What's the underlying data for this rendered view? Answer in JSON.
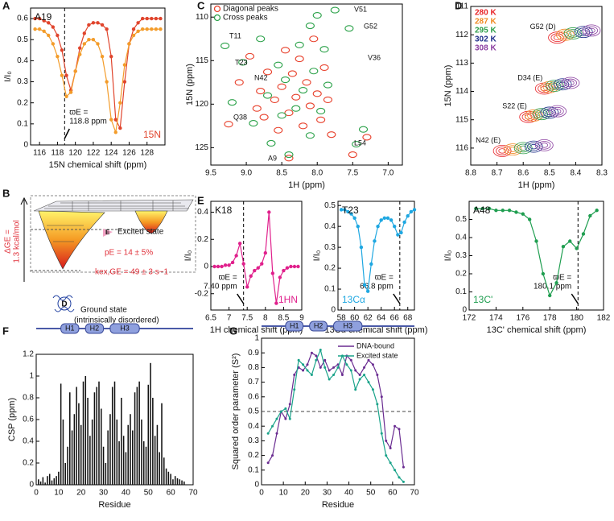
{
  "chart_data": [
    {
      "type": "line",
      "panel": "A",
      "label": "A19",
      "nucleus": "15N",
      "xlabel": "15N chemical shift (ppm)",
      "ylabel": "I/I₀",
      "xlim": [
        115,
        130
      ],
      "xticks": [
        116,
        118,
        120,
        122,
        124,
        126,
        128
      ],
      "ylim": [
        0,
        0.65
      ],
      "yticks": [
        0,
        0.1,
        0.2,
        0.3,
        0.4,
        0.5,
        0.6
      ],
      "marker_x": 118.8,
      "marker_label": "ϖE =",
      "marker_value_label": "118.8 ppm",
      "x": [
        115.5,
        116,
        116.5,
        117,
        117.5,
        118,
        118.5,
        119,
        119.5,
        120,
        120.5,
        121,
        121.5,
        122,
        122.5,
        123,
        123.5,
        124,
        124.5,
        125,
        125.5,
        126,
        126.5,
        127,
        127.5,
        128,
        128.5,
        129,
        129.5
      ],
      "series": [
        {
          "color": "#e0442c",
          "values": [
            0.6,
            0.6,
            0.59,
            0.58,
            0.56,
            0.52,
            0.45,
            0.33,
            0.26,
            0.35,
            0.46,
            0.53,
            0.57,
            0.58,
            0.58,
            0.57,
            0.55,
            0.42,
            0.12,
            0.08,
            0.3,
            0.48,
            0.55,
            0.58,
            0.6,
            0.6,
            0.6,
            0.6,
            0.6
          ]
        },
        {
          "color": "#f39c2a",
          "values": [
            0.55,
            0.55,
            0.54,
            0.52,
            0.48,
            0.42,
            0.33,
            0.23,
            0.25,
            0.35,
            0.43,
            0.48,
            0.5,
            0.5,
            0.48,
            0.42,
            0.3,
            0.12,
            0.06,
            0.2,
            0.38,
            0.48,
            0.52,
            0.54,
            0.55,
            0.55,
            0.55,
            0.55,
            0.55
          ]
        }
      ]
    },
    {
      "type": "scatter",
      "panel": "C",
      "xlabel": "1H (ppm)",
      "ylabel": "15N (ppm)",
      "xlim": [
        9.5,
        6.8
      ],
      "xticks": [
        9.5,
        {
          "value": 9,
          "label": "9.0"
        },
        8.5,
        {
          "value": 8,
          "label": "8.0"
        },
        7.5,
        {
          "value": 7,
          "label": "7.0"
        }
      ],
      "ylim": [
        127,
        108.5
      ],
      "yticks": [
        110,
        115,
        120,
        125
      ],
      "peak_labels": [
        "V51",
        "G52",
        "T11",
        "V36",
        "T23",
        "N42",
        "Q38",
        "L54",
        "A9"
      ],
      "series": [
        {
          "name": "Diagonal peaks",
          "color": "#e8412c",
          "x": [
            9.25,
            9.1,
            8.95,
            8.85,
            8.8,
            8.75,
            8.7,
            8.6,
            8.55,
            8.5,
            8.45,
            8.4,
            8.35,
            8.3,
            8.25,
            8.2,
            8.15,
            8.1,
            8.05,
            8.0,
            7.95,
            7.9,
            7.85,
            7.8,
            8.4,
            7.3,
            7.5
          ],
          "values": [
            122.3,
            117.5,
            114.5,
            120.5,
            118.5,
            121.5,
            116.3,
            119.5,
            123,
            118,
            113.8,
            121,
            116.5,
            119.2,
            114.8,
            122.5,
            117.5,
            120.2,
            112.5,
            118.8,
            121.8,
            115.8,
            119.5,
            123.5,
            126.2,
            123.8,
            125.8
          ]
        },
        {
          "name": "Cross peaks",
          "color": "#2ca24a",
          "x": [
            9.3,
            9.2,
            9.05,
            8.9,
            8.8,
            8.7,
            8.65,
            8.55,
            8.5,
            8.45,
            8.4,
            8.3,
            8.25,
            8.2,
            8.1,
            8.1,
            8.05,
            8.0,
            7.95,
            7.9,
            7.85,
            7.55,
            7.75,
            7.35,
            7.45
          ],
          "values": [
            113.3,
            119.8,
            115.2,
            122.2,
            112.5,
            119,
            124.5,
            115.5,
            121.3,
            117.2,
            125.8,
            120.5,
            113.2,
            118.4,
            111,
            123.6,
            116.2,
            109.8,
            120.8,
            113.7,
            117.8,
            111.3,
            109.2,
            122.9,
            124.6
          ]
        }
      ]
    },
    {
      "type": "contour",
      "panel": "D",
      "xlabel": "1H (ppm)",
      "ylabel": "15N (ppm)",
      "xlim": [
        8.8,
        8.3
      ],
      "xticks": [
        8.8,
        8.7,
        8.6,
        8.5,
        8.4,
        8.3
      ],
      "ylim": [
        116.6,
        111
      ],
      "yticks": [
        111,
        112,
        113,
        114,
        115,
        116
      ],
      "peaks": [
        "G52 (D)",
        "D34 (E)",
        "S22 (E)",
        "N42 (E)"
      ],
      "series": [
        {
          "name": "280 K",
          "color": "#e8252a",
          "x": [
            8.47,
            8.52,
            8.58,
            8.68
          ],
          "values": [
            112.1,
            113.9,
            114.9,
            116.1
          ]
        },
        {
          "name": "287 K",
          "color": "#f08a24",
          "x": [
            8.44,
            8.5,
            8.56,
            8.64
          ],
          "values": [
            112.0,
            113.85,
            114.85,
            116.05
          ]
        },
        {
          "name": "295 K",
          "color": "#2e9e4a",
          "x": [
            8.41,
            8.48,
            8.53,
            8.6
          ],
          "values": [
            111.95,
            113.8,
            114.8,
            116.0
          ]
        },
        {
          "name": "302 K",
          "color": "#1f2f8a",
          "x": [
            8.37,
            8.45,
            8.5,
            8.56
          ],
          "values": [
            111.9,
            113.75,
            114.75,
            115.95
          ]
        },
        {
          "name": "308 K",
          "color": "#8b3fa0",
          "x": [
            8.34,
            8.42,
            8.47,
            8.52
          ],
          "values": [
            111.85,
            113.7,
            114.7,
            115.9
          ]
        }
      ]
    },
    {
      "type": "line",
      "panel": "E",
      "label": "K18",
      "nucleus": "1HN",
      "xlabel": "1H chemical shift (ppm)",
      "ylabel": "I/I₀",
      "xlim": [
        6.5,
        9
      ],
      "xticks": [
        6.5,
        7,
        7.5,
        8,
        8.5,
        9
      ],
      "ylim": [
        -0.32,
        0.48
      ],
      "yticks": [
        -0.2,
        0,
        0.2,
        0.4
      ],
      "marker_x": 7.4,
      "marker_label": "ϖE =",
      "marker_value_label": "7.40 ppm",
      "x": [
        6.6,
        6.7,
        6.8,
        6.9,
        7.0,
        7.1,
        7.2,
        7.3,
        7.4,
        7.5,
        7.6,
        7.7,
        7.8,
        7.9,
        8.0,
        8.1,
        8.2,
        8.3,
        8.4,
        8.5,
        8.6,
        8.7,
        8.8,
        8.9
      ],
      "series": [
        {
          "color": "#e0208c",
          "values": [
            0,
            0,
            0,
            0.01,
            0.01,
            0.03,
            0.08,
            0.17,
            0.02,
            -0.15,
            -0.07,
            -0.03,
            -0.01,
            0.02,
            0.1,
            0.4,
            -0.05,
            -0.27,
            -0.08,
            -0.03,
            -0.01,
            0,
            0,
            0
          ]
        }
      ]
    },
    {
      "type": "line",
      "label": "T23",
      "nucleus": "13Cα",
      "xlabel": "13Cα chemical shift (ppm)",
      "ylabel": "I/I₀",
      "xlim": [
        57.5,
        69
      ],
      "xticks": [
        58,
        60,
        62,
        64,
        66,
        68
      ],
      "ylim": [
        0,
        0.52
      ],
      "yticks": [
        0,
        0.1,
        0.2,
        0.3,
        0.4,
        0.5
      ],
      "marker_x": 66.8,
      "marker_label": "ϖE =",
      "marker_value_label": "66.8 ppm",
      "x": [
        58,
        58.5,
        59,
        59.5,
        60,
        60.5,
        61,
        61.5,
        62,
        62.5,
        63,
        63.5,
        64,
        64.5,
        65,
        65.5,
        66,
        66.5,
        67,
        67.5,
        68,
        68.5,
        69
      ],
      "series": [
        {
          "color": "#1ea7e1",
          "values": [
            0.48,
            0.48,
            0.47,
            0.46,
            0.44,
            0.4,
            0.3,
            0.12,
            0.09,
            0.22,
            0.33,
            0.4,
            0.43,
            0.44,
            0.44,
            0.43,
            0.4,
            0.36,
            0.37,
            0.42,
            0.45,
            0.47,
            0.48
          ]
        }
      ]
    },
    {
      "type": "line",
      "label": "A48",
      "nucleus": "13C'",
      "xlabel": "13C' chemical shift (ppm)",
      "ylabel": "I/I₀",
      "xlim": [
        172,
        182
      ],
      "xticks": [
        172,
        174,
        176,
        178,
        180,
        182
      ],
      "ylim": [
        0,
        0.6
      ],
      "yticks": [
        0,
        0.1,
        0.2,
        0.3,
        0.4,
        0.5
      ],
      "marker_x": 180.1,
      "marker_label": "ϖE =",
      "marker_value_label": "180.1 ppm",
      "x": [
        172.5,
        173,
        173.5,
        174,
        174.5,
        175,
        175.5,
        176,
        176.5,
        177,
        177.5,
        178,
        178.5,
        179,
        179.5,
        180,
        180.5,
        181,
        181.5
      ],
      "series": [
        {
          "color": "#1f9e50",
          "values": [
            0.56,
            0.56,
            0.56,
            0.55,
            0.55,
            0.55,
            0.54,
            0.53,
            0.5,
            0.38,
            0.2,
            0.08,
            0.15,
            0.35,
            0.38,
            0.34,
            0.42,
            0.52,
            0.55
          ]
        }
      ]
    },
    {
      "type": "bar",
      "panel": "F",
      "xlabel": "Residue",
      "ylabel": "CSP (ppm)",
      "color": "#111111",
      "helices": [
        "H1",
        "H2",
        "H3"
      ],
      "xlim": [
        0,
        70
      ],
      "xticks": [
        0,
        10,
        20,
        30,
        40,
        50,
        60,
        70
      ],
      "ylim": [
        0,
        1.2
      ],
      "yticks": [
        0,
        0.2,
        0.4,
        0.6,
        0.8,
        1,
        1.2
      ],
      "x": [
        1,
        2,
        3,
        4,
        5,
        6,
        7,
        8,
        9,
        10,
        11,
        12,
        13,
        14,
        15,
        16,
        17,
        18,
        19,
        20,
        21,
        22,
        23,
        24,
        25,
        26,
        27,
        28,
        29,
        30,
        31,
        32,
        33,
        34,
        35,
        36,
        37,
        38,
        39,
        40,
        41,
        42,
        43,
        44,
        45,
        46,
        47,
        48,
        49,
        50,
        51,
        52,
        53,
        54,
        55,
        56,
        57,
        58,
        59,
        60,
        61,
        62,
        63,
        64,
        65,
        66
      ],
      "values": [
        0.05,
        0.03,
        0.07,
        0.02,
        0.08,
        0.1,
        0.04,
        0.06,
        0.08,
        0.12,
        0.93,
        0.6,
        0.2,
        0.35,
        0.85,
        0.5,
        0.65,
        0.9,
        0.75,
        0.55,
        0.95,
        1.0,
        0.8,
        0.45,
        0.6,
        0.85,
        0.9,
        0.95,
        0.7,
        0.35,
        0.2,
        0.5,
        0.65,
        0.9,
        0.95,
        0.6,
        0.4,
        0.8,
        0.45,
        0.3,
        0.55,
        0.65,
        0.5,
        0.85,
        0.9,
        0.95,
        0.6,
        0.4,
        0.35,
        0.92,
        1.12,
        0.8,
        0.45,
        0.55,
        0.3,
        0.75,
        0.25,
        0.15,
        0.12,
        0.1,
        0.05,
        0.08,
        0.06,
        0.05,
        0.04,
        0.03
      ]
    },
    {
      "type": "line",
      "panel": "G",
      "xlabel": "Residue",
      "ylabel": "Squared order parameter (S²)",
      "helices": [
        "H1",
        "H2",
        "H3"
      ],
      "reference_line": 0.5,
      "xlim": [
        0,
        70
      ],
      "xticks": [
        0,
        10,
        20,
        30,
        40,
        50,
        60,
        70
      ],
      "ylim": [
        0,
        1
      ],
      "yticks": [
        0,
        0.1,
        0.2,
        0.3,
        0.4,
        0.5,
        0.6,
        0.7,
        0.8,
        0.9,
        1
      ],
      "x": [
        3,
        5,
        7,
        9,
        11,
        13,
        15,
        17,
        19,
        21,
        23,
        25,
        27,
        29,
        31,
        33,
        35,
        37,
        39,
        41,
        43,
        45,
        47,
        49,
        51,
        53,
        55,
        57,
        59,
        61,
        63,
        65
      ],
      "series": [
        {
          "name": "DNA-bound",
          "color": "#6a2c91",
          "values": [
            0.15,
            0.2,
            0.35,
            0.5,
            0.45,
            0.55,
            0.75,
            0.8,
            0.78,
            0.82,
            0.9,
            0.88,
            0.8,
            0.85,
            0.78,
            0.8,
            0.82,
            0.75,
            0.88,
            0.85,
            0.78,
            0.75,
            0.8,
            0.85,
            0.82,
            0.75,
            0.6,
            0.3,
            0.25,
            0.4,
            0.38,
            0.12
          ]
        },
        {
          "name": "Excited state",
          "color": "#1aa38a",
          "values": [
            0.35,
            0.4,
            0.45,
            0.5,
            0.52,
            0.45,
            0.65,
            0.85,
            0.82,
            0.78,
            0.75,
            0.85,
            0.92,
            0.8,
            0.72,
            0.75,
            0.8,
            0.88,
            0.82,
            0.78,
            0.65,
            0.72,
            0.75,
            0.7,
            0.65,
            0.55,
            0.35,
            0.2,
            0.15,
            0.1,
            0.05,
            0.02
          ]
        }
      ]
    }
  ],
  "diagram": {
    "panel": "B",
    "delta_g": "ΔGE =",
    "delta_g_value": "1.3 kcal/mol",
    "excited_label": "E",
    "excited_state": "Excited state",
    "p_e": "pE = 14 ± 5%",
    "k_ex": "kex,GE = 49 ± 3 s−1",
    "ground_label": "D",
    "ground_state": "Ground state",
    "ground_state_note": "(intrinsically disordered)"
  }
}
